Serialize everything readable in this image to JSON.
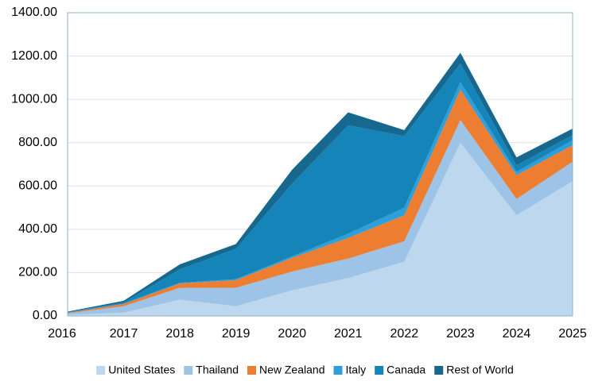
{
  "chart_data": {
    "type": "stacked-area",
    "categories": [
      "2016",
      "2017",
      "2018",
      "2019",
      "2020",
      "2021",
      "2022",
      "2023",
      "2024",
      "2025"
    ],
    "series": [
      {
        "name": "United States",
        "color": "#bdd7ee",
        "values": [
          5,
          15,
          75,
          45,
          118,
          175,
          250,
          800,
          465,
          622
        ]
      },
      {
        "name": "Thailand",
        "color": "#9dc3e6",
        "values": [
          7,
          30,
          55,
          85,
          87,
          90,
          95,
          105,
          75,
          90
        ]
      },
      {
        "name": "New Zealand",
        "color": "#ed7d31",
        "values": [
          2,
          10,
          20,
          35,
          63,
          95,
          120,
          140,
          110,
          76
        ]
      },
      {
        "name": "Italy",
        "color": "#2e9fd8",
        "values": [
          1,
          2,
          3,
          5,
          7,
          20,
          35,
          35,
          15,
          24
        ]
      },
      {
        "name": "Canada",
        "color": "#1584b8",
        "values": [
          3,
          5,
          62,
          140,
          335,
          500,
          330,
          85,
          30,
          23
        ]
      },
      {
        "name": "Rest of World",
        "color": "#16688f",
        "values": [
          2,
          8,
          23,
          22,
          65,
          60,
          28,
          50,
          37,
          30
        ]
      }
    ],
    "ylim": [
      0,
      1400
    ],
    "yticks": [
      {
        "value": 0,
        "label": "0.00"
      },
      {
        "value": 200,
        "label": "200.00"
      },
      {
        "value": 400,
        "label": "400.00"
      },
      {
        "value": 600,
        "label": "600.00"
      },
      {
        "value": 800,
        "label": "800.00"
      },
      {
        "value": 1000,
        "label": "1000.00"
      },
      {
        "value": 1200,
        "label": "1200.00"
      },
      {
        "value": 1400,
        "label": "1400.00"
      }
    ],
    "grid": true,
    "legend": "bottom"
  }
}
